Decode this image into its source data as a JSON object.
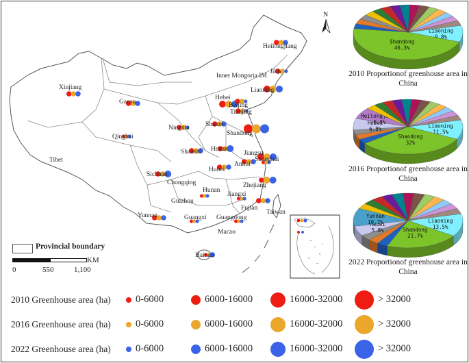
{
  "map": {
    "provinces": [
      {
        "name": "Heilongjiang",
        "circles": [
          {
            "series": "2010",
            "size": 2
          },
          {
            "series": "2016",
            "size": 2
          },
          {
            "series": "2022",
            "size": 2
          }
        ]
      },
      {
        "name": "Jilin",
        "circles": [
          {
            "series": "2010",
            "size": 2
          },
          {
            "series": "2016",
            "size": 2
          },
          {
            "series": "2022",
            "size": 1
          }
        ]
      },
      {
        "name": "Liaoning",
        "circles": [
          {
            "series": "2010",
            "size": 3
          },
          {
            "series": "2016",
            "size": 3
          },
          {
            "series": "2022",
            "size": 3
          }
        ]
      },
      {
        "name": "Inner Mongoria IM",
        "circles": []
      },
      {
        "name": "Xinjiang",
        "circles": [
          {
            "series": "2010",
            "size": 2
          },
          {
            "series": "2016",
            "size": 2
          },
          {
            "series": "2022",
            "size": 2
          }
        ]
      },
      {
        "name": "Gansu",
        "circles": [
          {
            "series": "2010",
            "size": 2
          },
          {
            "series": "2016",
            "size": 2
          },
          {
            "series": "2022",
            "size": 2
          }
        ]
      },
      {
        "name": "Hebei",
        "circles": [
          {
            "series": "2010",
            "size": 3
          },
          {
            "series": "2016",
            "size": 3
          },
          {
            "series": "2022",
            "size": 3
          }
        ]
      },
      {
        "name": "Beijing",
        "circles": [
          {
            "series": "2010",
            "size": 2
          },
          {
            "series": "2016",
            "size": 2
          },
          {
            "series": "2022",
            "size": 1
          }
        ]
      },
      {
        "name": "Tianjing",
        "circles": [
          {
            "series": "2010",
            "size": 2
          },
          {
            "series": "2016",
            "size": 2
          },
          {
            "series": "2022",
            "size": 1
          }
        ]
      },
      {
        "name": "Ningxia",
        "circles": [
          {
            "series": "2010",
            "size": 2
          },
          {
            "series": "2016",
            "size": 2
          },
          {
            "series": "2022",
            "size": 1
          }
        ]
      },
      {
        "name": "Shanxi",
        "circles": [
          {
            "series": "2010",
            "size": 2
          },
          {
            "series": "2016",
            "size": 2
          },
          {
            "series": "2022",
            "size": 2
          }
        ]
      },
      {
        "name": "Shandong",
        "circles": [
          {
            "series": "2010",
            "size": 4
          },
          {
            "series": "2016",
            "size": 4
          },
          {
            "series": "2022",
            "size": 4
          }
        ]
      },
      {
        "name": "Qinghai",
        "circles": [
          {
            "series": "2010",
            "size": 1
          },
          {
            "series": "2016",
            "size": 1
          },
          {
            "series": "2022",
            "size": 1
          }
        ]
      },
      {
        "name": "Tibet",
        "circles": []
      },
      {
        "name": "Shaanxi",
        "circles": [
          {
            "series": "2010",
            "size": 2
          },
          {
            "series": "2016",
            "size": 2
          },
          {
            "series": "2022",
            "size": 2
          }
        ]
      },
      {
        "name": "Henan",
        "circles": [
          {
            "series": "2010",
            "size": 2
          },
          {
            "series": "2016",
            "size": 2
          },
          {
            "series": "2022",
            "size": 3
          }
        ]
      },
      {
        "name": "Jiangsu",
        "circles": [
          {
            "series": "2010",
            "size": 3
          },
          {
            "series": "2016",
            "size": 3
          },
          {
            "series": "2022",
            "size": 3
          }
        ]
      },
      {
        "name": "Shanghai",
        "circles": [
          {
            "series": "2010",
            "size": 1
          },
          {
            "series": "2016",
            "size": 1
          },
          {
            "series": "2022",
            "size": 1
          }
        ]
      },
      {
        "name": "Anhui",
        "circles": [
          {
            "series": "2010",
            "size": 2
          },
          {
            "series": "2016",
            "size": 2
          },
          {
            "series": "2022",
            "size": 2
          }
        ]
      },
      {
        "name": "Hubei",
        "circles": [
          {
            "series": "2010",
            "size": 2
          },
          {
            "series": "2016",
            "size": 2
          },
          {
            "series": "2022",
            "size": 2
          }
        ]
      },
      {
        "name": "Sichuan",
        "circles": [
          {
            "series": "2010",
            "size": 2
          },
          {
            "series": "2016",
            "size": 2
          },
          {
            "series": "2022",
            "size": 3
          }
        ]
      },
      {
        "name": "Chongqing",
        "circles": []
      },
      {
        "name": "Zhejiang",
        "circles": [
          {
            "series": "2010",
            "size": 2
          },
          {
            "series": "2016",
            "size": 3
          },
          {
            "series": "2022",
            "size": 3
          }
        ]
      },
      {
        "name": "Hunan",
        "circles": [
          {
            "series": "2010",
            "size": 1
          },
          {
            "series": "2016",
            "size": 1
          },
          {
            "series": "2022",
            "size": 1
          }
        ]
      },
      {
        "name": "Jiangxi",
        "circles": [
          {
            "series": "2010",
            "size": 1
          },
          {
            "series": "2016",
            "size": 1
          },
          {
            "series": "2022",
            "size": 1
          }
        ]
      },
      {
        "name": "Guizhou",
        "circles": []
      },
      {
        "name": "Fujian",
        "circles": [
          {
            "series": "2010",
            "size": 2
          },
          {
            "series": "2016",
            "size": 2
          },
          {
            "series": "2022",
            "size": 2
          }
        ]
      },
      {
        "name": "Yunnan",
        "circles": [
          {
            "series": "2010",
            "size": 2
          },
          {
            "series": "2016",
            "size": 2
          },
          {
            "series": "2022",
            "size": 2
          }
        ]
      },
      {
        "name": "Guangxi",
        "circles": [
          {
            "series": "2010",
            "size": 1
          },
          {
            "series": "2016",
            "size": 1
          },
          {
            "series": "2022",
            "size": 1
          }
        ]
      },
      {
        "name": "Guangdong",
        "circles": [
          {
            "series": "2010",
            "size": 1
          },
          {
            "series": "2016",
            "size": 1
          },
          {
            "series": "2022",
            "size": 1
          }
        ]
      },
      {
        "name": "Taiwan",
        "circles": []
      },
      {
        "name": "Macao",
        "circles": []
      },
      {
        "name": "Hainan",
        "circles": [
          {
            "series": "2010",
            "size": 1
          },
          {
            "series": "2016",
            "size": 1
          },
          {
            "series": "2022",
            "size": 2
          }
        ]
      }
    ],
    "north_label": "N",
    "scale": {
      "boundary_label": "Provincial boundary",
      "ticks": [
        "0",
        "550",
        "1,100"
      ],
      "unit": "KM"
    }
  },
  "pies": [
    {
      "title": "2010 Proportionof greenhouse area in China",
      "slices": [
        {
          "label": "Shandong",
          "pct": "46.3%",
          "value": 46.3,
          "color": "#7dc42a"
        },
        {
          "label": "Liaoning",
          "pct": "9.8%",
          "value": 9.8,
          "color": "#7ff0ff"
        },
        {
          "label": "",
          "pct": "",
          "value": 43.9,
          "color": "#multi"
        }
      ]
    },
    {
      "title": "2016 Proportionof greenhouse area in China",
      "slices": [
        {
          "label": "Shandong",
          "pct": "32%",
          "value": 32.0,
          "color": "#7dc42a"
        },
        {
          "label": "Liaoning",
          "pct": "11.5%",
          "value": 11.5,
          "color": "#7ff0ff"
        },
        {
          "label": "Hebei",
          "pct": "6.8%",
          "value": 6.8,
          "color": "#c9c9f0"
        },
        {
          "label": "Heilongjiang",
          "pct": "6.8%",
          "value": 6.8,
          "color": "#b07cc6"
        },
        {
          "label": "",
          "pct": "",
          "value": 42.9,
          "color": "#multi"
        }
      ]
    },
    {
      "title": "2022 Proportionof greenhouse area in China",
      "slices": [
        {
          "label": "Shandong",
          "pct": "21.7%",
          "value": 21.7,
          "color": "#7dc42a"
        },
        {
          "label": "Liaoning",
          "pct": "13.5%",
          "value": 13.5,
          "color": "#7ff0ff"
        },
        {
          "label": "Hebei",
          "pct": "5.8%",
          "value": 5.8,
          "color": "#c9c9f0"
        },
        {
          "label": "Yunnan",
          "pct": "10.7%",
          "value": 10.7,
          "color": "#4aa0c8"
        },
        {
          "label": "",
          "pct": "",
          "value": 48.3,
          "color": "#multi"
        }
      ]
    }
  ],
  "legend": {
    "rows": [
      {
        "title": "2010 Greenhouse area (ha)",
        "color": "#ee1c12"
      },
      {
        "title": "2016 Greenhouse area (ha)",
        "color": "#eba62c"
      },
      {
        "title": "2022 Greenhouse area (ha)",
        "color": "#3b63e8"
      }
    ],
    "ranges": [
      "0-6000",
      "6000-16000",
      "16000-32000",
      "> 32000"
    ]
  },
  "colors": {
    "series_2010": "#ee1c12",
    "series_2016": "#eba62c",
    "series_2022": "#3b63e8",
    "boundary": "#777777"
  }
}
